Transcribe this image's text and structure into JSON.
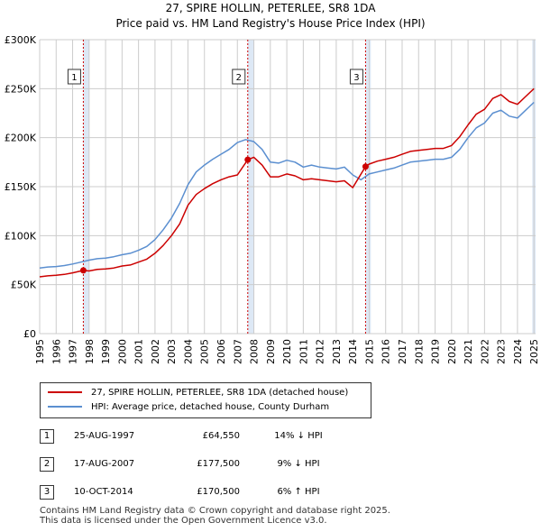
{
  "title_line1": "27, SPIRE HOLLIN, PETERLEE, SR8 1DA",
  "title_line2": "Price paid vs. HM Land Registry's House Price Index (HPI)",
  "colors": {
    "property": "#cc0000",
    "hpi": "#5b8fd0",
    "shade": "#dde8f5",
    "grid": "#cccccc",
    "marker_line": "#cc0000"
  },
  "legend": {
    "property": "27, SPIRE HOLLIN, PETERLEE, SR8 1DA (detached house)",
    "hpi": "HPI: Average price, detached house, County Durham"
  },
  "transactions": [
    {
      "num": "1",
      "date": "25-AUG-1997",
      "price": "£64,550",
      "hpi": "14% ↓ HPI"
    },
    {
      "num": "2",
      "date": "17-AUG-2007",
      "price": "£177,500",
      "hpi": "9% ↓ HPI"
    },
    {
      "num": "3",
      "date": "10-OCT-2014",
      "price": "£170,500",
      "hpi": "6% ↑ HPI"
    }
  ],
  "footer": {
    "line1": "Contains HM Land Registry data © Crown copyright and database right 2025.",
    "line2": "This data is licensed under the Open Government Licence v3.0."
  },
  "chart_data": {
    "type": "line",
    "title": "27, SPIRE HOLLIN, PETERLEE, SR8 1DA",
    "subtitle": "Price paid vs. HM Land Registry's House Price Index (HPI)",
    "xlabel": "",
    "ylabel": "",
    "xlim": [
      1995,
      2025.1
    ],
    "ylim": [
      0,
      300000
    ],
    "y_ticks": [
      0,
      50000,
      100000,
      150000,
      200000,
      250000,
      300000
    ],
    "y_tick_labels": [
      "£0",
      "£50K",
      "£100K",
      "£150K",
      "£200K",
      "£250K",
      "£300K"
    ],
    "x_ticks": [
      1995,
      1996,
      1997,
      1998,
      1999,
      2000,
      2001,
      2002,
      2003,
      2004,
      2005,
      2006,
      2007,
      2008,
      2009,
      2010,
      2011,
      2012,
      2013,
      2014,
      2015,
      2016,
      2017,
      2018,
      2019,
      2020,
      2021,
      2022,
      2023,
      2024,
      2025
    ],
    "grid": true,
    "shaded_regions": [
      [
        1997.65,
        1998.0
      ],
      [
        2007.63,
        2008.0
      ],
      [
        2014.78,
        2015.1
      ],
      [
        2024.9,
        2025.1
      ]
    ],
    "markers": [
      {
        "label": "1",
        "x": 1997.65,
        "y": 64550
      },
      {
        "label": "2",
        "x": 2007.63,
        "y": 177500
      },
      {
        "label": "3",
        "x": 2014.78,
        "y": 170500
      }
    ],
    "series": [
      {
        "name": "HPI: Average price, detached house, County Durham",
        "color": "#5b8fd0",
        "x": [
          1995.0,
          1995.5,
          1996.0,
          1996.5,
          1997.0,
          1997.5,
          1998.0,
          1998.5,
          1999.0,
          1999.5,
          2000.0,
          2000.5,
          2001.0,
          2001.5,
          2002.0,
          2002.5,
          2003.0,
          2003.5,
          2004.0,
          2004.5,
          2005.0,
          2005.5,
          2006.0,
          2006.5,
          2007.0,
          2007.5,
          2008.0,
          2008.5,
          2009.0,
          2009.5,
          2010.0,
          2010.5,
          2011.0,
          2011.5,
          2012.0,
          2012.5,
          2013.0,
          2013.5,
          2014.0,
          2014.5,
          2015.0,
          2015.5,
          2016.0,
          2016.5,
          2017.0,
          2017.5,
          2018.0,
          2018.5,
          2019.0,
          2019.5,
          2020.0,
          2020.5,
          2021.0,
          2021.5,
          2022.0,
          2022.5,
          2023.0,
          2023.5,
          2024.0,
          2024.5,
          2025.0
        ],
        "values": [
          67000,
          68000,
          68500,
          69500,
          71000,
          73000,
          75000,
          76500,
          77000,
          78500,
          80500,
          82000,
          85000,
          89000,
          96000,
          106000,
          118000,
          133000,
          152000,
          165000,
          172000,
          178000,
          183000,
          188000,
          195000,
          198000,
          196000,
          188000,
          175000,
          174000,
          177000,
          175000,
          170000,
          172000,
          170000,
          169000,
          168000,
          170000,
          162000,
          157000,
          163000,
          165000,
          167000,
          169000,
          172000,
          175000,
          176000,
          177000,
          178000,
          178000,
          180000,
          188000,
          200000,
          210000,
          215000,
          225000,
          228000,
          222000,
          220000,
          228000,
          236000
        ]
      },
      {
        "name": "27, SPIRE HOLLIN, PETERLEE, SR8 1DA (detached house)",
        "color": "#cc0000",
        "x": [
          1995.0,
          1995.5,
          1996.0,
          1996.5,
          1997.0,
          1997.65,
          1998.0,
          1998.5,
          1999.0,
          1999.5,
          2000.0,
          2000.5,
          2001.0,
          2001.5,
          2002.0,
          2002.5,
          2003.0,
          2003.5,
          2004.0,
          2004.5,
          2005.0,
          2005.5,
          2006.0,
          2006.5,
          2007.0,
          2007.63,
          2008.0,
          2008.5,
          2009.0,
          2009.5,
          2010.0,
          2010.5,
          2011.0,
          2011.5,
          2012.0,
          2012.5,
          2013.0,
          2013.5,
          2014.0,
          2014.78,
          2015.0,
          2015.5,
          2016.0,
          2016.5,
          2017.0,
          2017.5,
          2018.0,
          2018.5,
          2019.0,
          2019.5,
          2020.0,
          2020.5,
          2021.0,
          2021.5,
          2022.0,
          2022.5,
          2023.0,
          2023.5,
          2024.0,
          2024.5,
          2025.0
        ],
        "values": [
          58000,
          59000,
          59500,
          60500,
          62000,
          64550,
          64000,
          65500,
          66000,
          67000,
          69000,
          70000,
          73000,
          76000,
          82000,
          90000,
          100000,
          112000,
          131000,
          142000,
          148000,
          153000,
          157000,
          160000,
          162000,
          177500,
          180000,
          172000,
          160000,
          160000,
          163000,
          161000,
          157000,
          158000,
          157000,
          156000,
          155000,
          156000,
          149000,
          170500,
          173000,
          176000,
          178000,
          180000,
          183000,
          186000,
          187000,
          188000,
          189000,
          189000,
          192000,
          201000,
          213000,
          224000,
          229000,
          240000,
          244000,
          237000,
          234000,
          242000,
          250000
        ]
      }
    ]
  }
}
